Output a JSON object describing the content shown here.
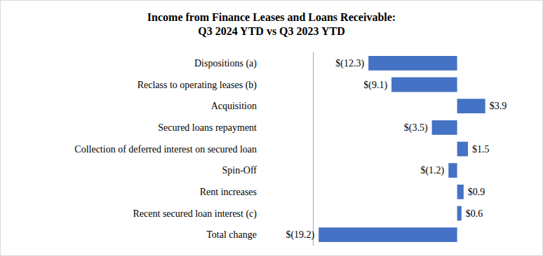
{
  "chart_data": {
    "type": "bar",
    "title": "Income from Finance Leases and Loans Receivable:\nQ3 2024 YTD vs Q3 2023 YTD",
    "orientation": "horizontal",
    "categories": [
      "Dispositions (a)",
      "Reclass to operating leases (b)",
      "Acquisition",
      "Secured loans repayment",
      "Collection of deferred interest on secured loan",
      "Spin-Off",
      "Rent increases",
      "Recent secured loan interest (c)",
      "Total change"
    ],
    "values": [
      -12.3,
      -9.1,
      3.9,
      -3.5,
      1.5,
      -1.2,
      0.9,
      0.6,
      -19.2
    ],
    "value_labels": [
      "$(12.3)",
      "$(9.1)",
      "$3.9",
      "$(3.5)",
      "$1.5",
      "$(1.2)",
      "$0.9",
      "$0.6",
      "$(19.2)"
    ],
    "color": "#4472c4",
    "data_labels": true,
    "tick_labels": "y",
    "grid": false
  }
}
